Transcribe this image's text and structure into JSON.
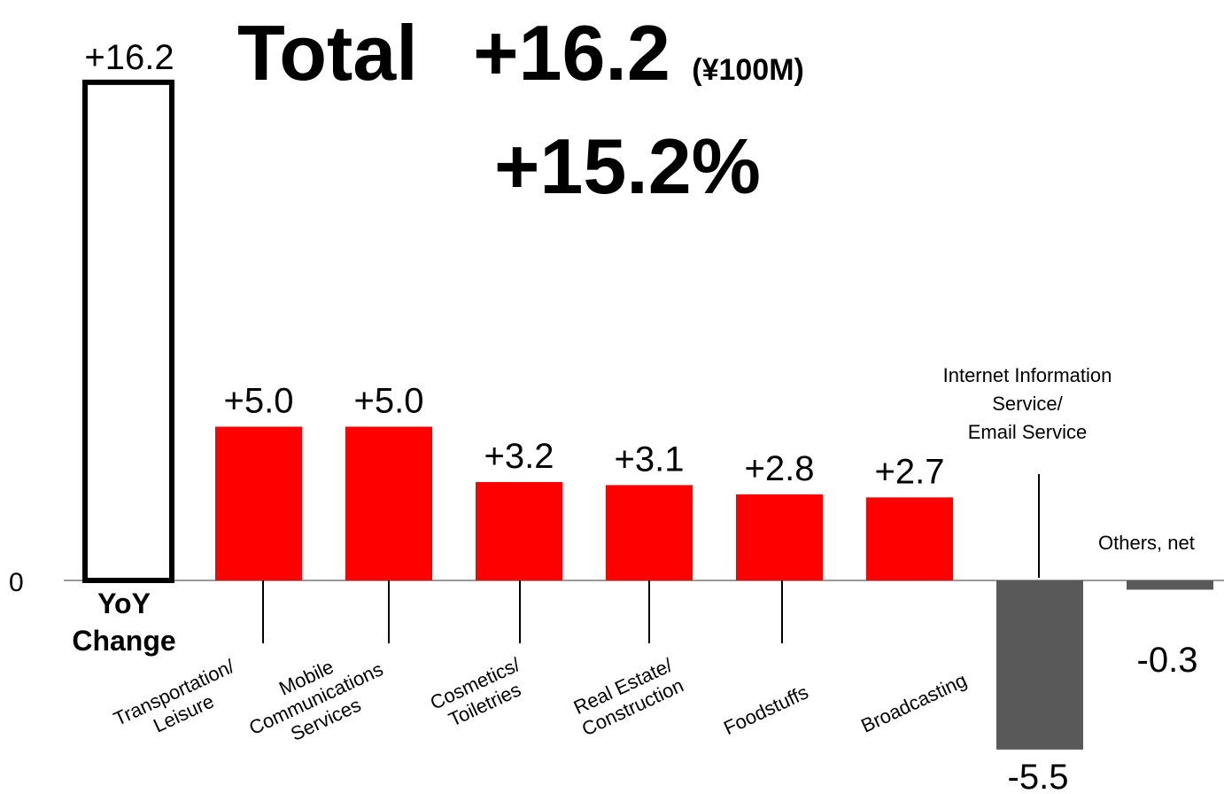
{
  "header": {
    "total_label": "Total",
    "total_value": "+16.2",
    "unit": "(¥100M)",
    "percent": "+15.2%"
  },
  "chart_data": {
    "type": "bar",
    "zero_label": "0",
    "ylim": [
      -6,
      17.5
    ],
    "colors": {
      "total": "#ffffff",
      "positive": "#ff0000",
      "negative": "#595959",
      "axis": "#999999"
    },
    "bars": [
      {
        "category": "YoY\nChange",
        "value": 16.2,
        "label": "+16.2",
        "kind": "total"
      },
      {
        "category": "Transportation/\nLeisure",
        "value": 5.0,
        "label": "+5.0",
        "kind": "positive"
      },
      {
        "category": "Mobile\nCommunications\nServices",
        "value": 5.0,
        "label": "+5.0",
        "kind": "positive"
      },
      {
        "category": "Cosmetics/\nToiletries",
        "value": 3.2,
        "label": "+3.2",
        "kind": "positive"
      },
      {
        "category": "Real Estate/\nConstruction",
        "value": 3.1,
        "label": "+3.1",
        "kind": "positive"
      },
      {
        "category": "Foodstuffs",
        "value": 2.8,
        "label": "+2.8",
        "kind": "positive"
      },
      {
        "category": "Broadcasting",
        "value": 2.7,
        "label": "+2.7",
        "kind": "positive"
      },
      {
        "category": "Internet Information\nService/\nEmail Service",
        "value": -5.5,
        "label": "-5.5",
        "kind": "negative"
      },
      {
        "category": "Others, net",
        "value": -0.3,
        "label": "-0.3",
        "kind": "negative"
      }
    ]
  }
}
